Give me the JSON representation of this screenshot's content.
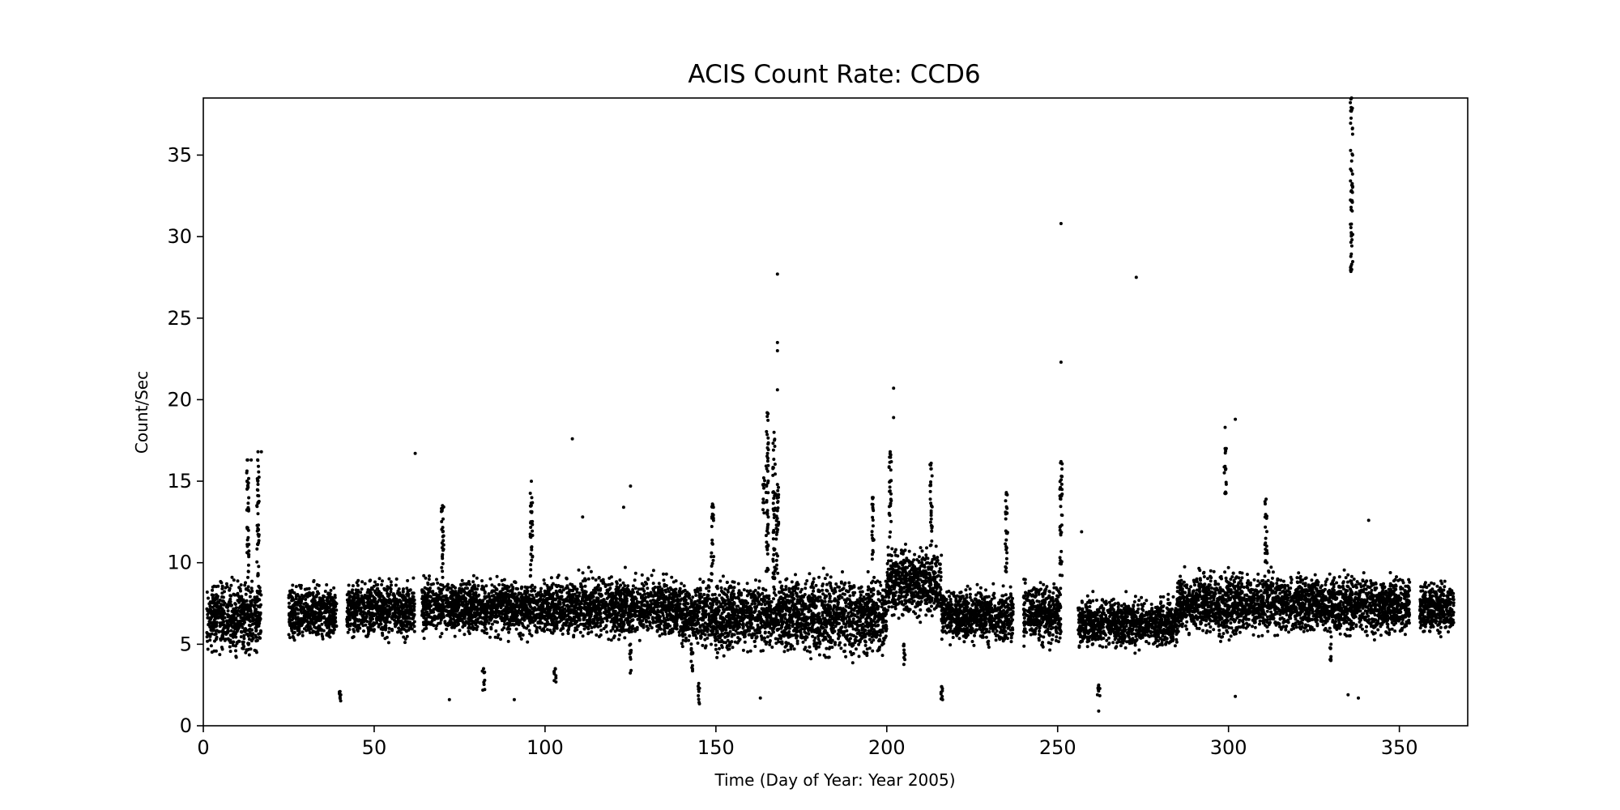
{
  "chart_data": {
    "type": "scatter",
    "title": "ACIS Count Rate: CCD6",
    "xlabel": "Time (Day of Year: Year 2005)",
    "ylabel": "Count/Sec",
    "xlim": [
      0,
      370
    ],
    "ylim": [
      0,
      38.5
    ],
    "xticks": [
      0,
      50,
      100,
      150,
      200,
      250,
      300,
      350
    ],
    "yticks": [
      0,
      5,
      10,
      15,
      20,
      25,
      30,
      35
    ],
    "grid": false,
    "marker_color": "#000000",
    "clusters": [
      {
        "x": [
          1,
          17
        ],
        "y": [
          3.8,
          9.5
        ]
      },
      {
        "x": [
          25,
          39
        ],
        "y": [
          4.6,
          9.2
        ]
      },
      {
        "x": [
          42,
          62
        ],
        "y": [
          4.8,
          9.5
        ]
      },
      {
        "x": [
          64,
          108
        ],
        "y": [
          5.0,
          9.5
        ]
      },
      {
        "x": [
          108,
          140
        ],
        "y": [
          4.8,
          9.8
        ]
      },
      {
        "x": [
          140,
          170
        ],
        "y": [
          4.0,
          9.5
        ]
      },
      {
        "x": [
          170,
          200
        ],
        "y": [
          3.5,
          10.0
        ]
      },
      {
        "x": [
          200,
          216
        ],
        "y": [
          6.0,
          11.5
        ]
      },
      {
        "x": [
          216,
          237
        ],
        "y": [
          4.5,
          9.0
        ]
      },
      {
        "x": [
          240,
          251
        ],
        "y": [
          4.5,
          9.3
        ]
      },
      {
        "x": [
          256,
          285
        ],
        "y": [
          4.3,
          8.3
        ]
      },
      {
        "x": [
          285,
          322
        ],
        "y": [
          5.0,
          10.0
        ]
      },
      {
        "x": [
          322,
          353
        ],
        "y": [
          5.0,
          9.8
        ]
      },
      {
        "x": [
          356,
          366
        ],
        "y": [
          5.2,
          9.3
        ]
      }
    ],
    "spikes": [
      {
        "x": 13,
        "y": [
          9,
          16.3
        ]
      },
      {
        "x": 16,
        "y": [
          8,
          16.8
        ]
      },
      {
        "x": 40,
        "y": [
          1.5,
          2.1
        ]
      },
      {
        "x": 70,
        "y": [
          8,
          13.5
        ]
      },
      {
        "x": 82,
        "y": [
          2.0,
          3.5
        ]
      },
      {
        "x": 96,
        "y": [
          9,
          15.0
        ]
      },
      {
        "x": 103,
        "y": [
          2.3,
          3.5
        ]
      },
      {
        "x": 125,
        "y": [
          3.2,
          5.0
        ]
      },
      {
        "x": 143,
        "y": [
          2.8,
          4.5
        ]
      },
      {
        "x": 145,
        "y": [
          1.2,
          2.6
        ]
      },
      {
        "x": 149,
        "y": [
          9,
          13.6
        ]
      },
      {
        "x": 164,
        "y": [
          13,
          15.2
        ]
      },
      {
        "x": 165,
        "y": [
          9,
          19.2
        ]
      },
      {
        "x": 167,
        "y": [
          9,
          18.0
        ]
      },
      {
        "x": 168,
        "y": [
          9,
          14.8
        ]
      },
      {
        "x": 196,
        "y": [
          10,
          14.0
        ]
      },
      {
        "x": 201,
        "y": [
          11,
          16.8
        ]
      },
      {
        "x": 205,
        "y": [
          3.5,
          5.0
        ]
      },
      {
        "x": 213,
        "y": [
          11,
          16.1
        ]
      },
      {
        "x": 216,
        "y": [
          1.5,
          2.4
        ]
      },
      {
        "x": 235,
        "y": [
          9,
          14.3
        ]
      },
      {
        "x": 251,
        "y": [
          9,
          16.2
        ]
      },
      {
        "x": 262,
        "y": [
          1.8,
          2.5
        ]
      },
      {
        "x": 299,
        "y": [
          14.2,
          17.0
        ]
      },
      {
        "x": 311,
        "y": [
          10,
          13.9
        ]
      },
      {
        "x": 330,
        "y": [
          3.5,
          5.0
        ]
      },
      {
        "x": 336,
        "y": [
          27.8,
          38.5
        ]
      }
    ],
    "outliers": [
      {
        "x": 14,
        "y": 16.3
      },
      {
        "x": 17,
        "y": 16.8
      },
      {
        "x": 62,
        "y": 16.7
      },
      {
        "x": 72,
        "y": 1.6
      },
      {
        "x": 91,
        "y": 1.6
      },
      {
        "x": 108,
        "y": 17.6
      },
      {
        "x": 111,
        "y": 12.8
      },
      {
        "x": 123,
        "y": 13.4
      },
      {
        "x": 125,
        "y": 14.7
      },
      {
        "x": 163,
        "y": 1.7
      },
      {
        "x": 168,
        "y": 20.6
      },
      {
        "x": 168,
        "y": 23.0
      },
      {
        "x": 168,
        "y": 23.5
      },
      {
        "x": 168,
        "y": 27.7
      },
      {
        "x": 202,
        "y": 18.9
      },
      {
        "x": 202,
        "y": 20.7
      },
      {
        "x": 251,
        "y": 22.3
      },
      {
        "x": 251,
        "y": 30.8
      },
      {
        "x": 257,
        "y": 11.9
      },
      {
        "x": 262,
        "y": 0.9
      },
      {
        "x": 273,
        "y": 27.5
      },
      {
        "x": 299,
        "y": 18.3
      },
      {
        "x": 302,
        "y": 18.8
      },
      {
        "x": 302,
        "y": 1.8
      },
      {
        "x": 335,
        "y": 1.9
      },
      {
        "x": 338,
        "y": 1.7
      },
      {
        "x": 341,
        "y": 12.6
      }
    ]
  }
}
